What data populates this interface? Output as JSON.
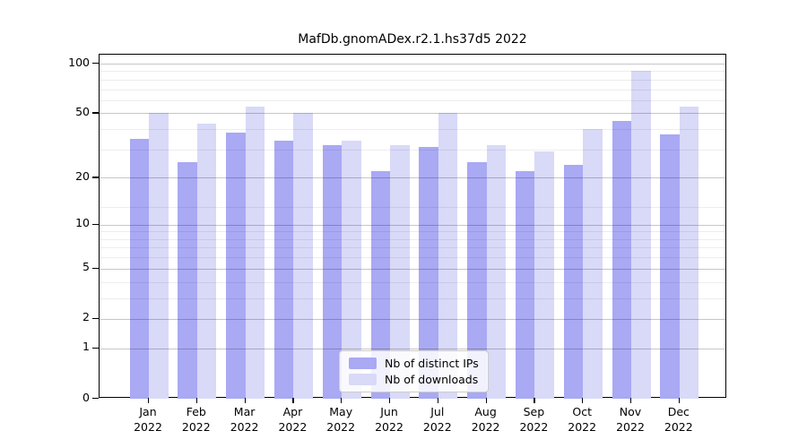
{
  "chart_data": {
    "type": "bar",
    "title": "MafDb.gnomADex.r2.1.hs37d5 2022",
    "categories": [
      "Jan",
      "Feb",
      "Mar",
      "Apr",
      "May",
      "Jun",
      "Jul",
      "Aug",
      "Sep",
      "Oct",
      "Nov",
      "Dec"
    ],
    "x_year_label": "2022",
    "series": [
      {
        "name": "Nb of distinct IPs",
        "color": "#a9a9f4",
        "values": [
          35,
          25,
          38,
          34,
          32,
          22,
          31,
          25,
          22,
          24,
          45,
          37
        ]
      },
      {
        "name": "Nb of downloads",
        "color": "#d9d9f8",
        "values": [
          50,
          43,
          55,
          50,
          34,
          32,
          50,
          32,
          29,
          40,
          90,
          55
        ]
      }
    ],
    "yscale": "log1p",
    "ylim": [
      0,
      100
    ],
    "yticks": [
      0,
      1,
      2,
      5,
      10,
      20,
      50,
      100
    ],
    "minor_gridlines": [
      3,
      4,
      6,
      7,
      8,
      9,
      13,
      30,
      40,
      60,
      70,
      80,
      90
    ],
    "grid": true,
    "legend_position": "lower center"
  }
}
